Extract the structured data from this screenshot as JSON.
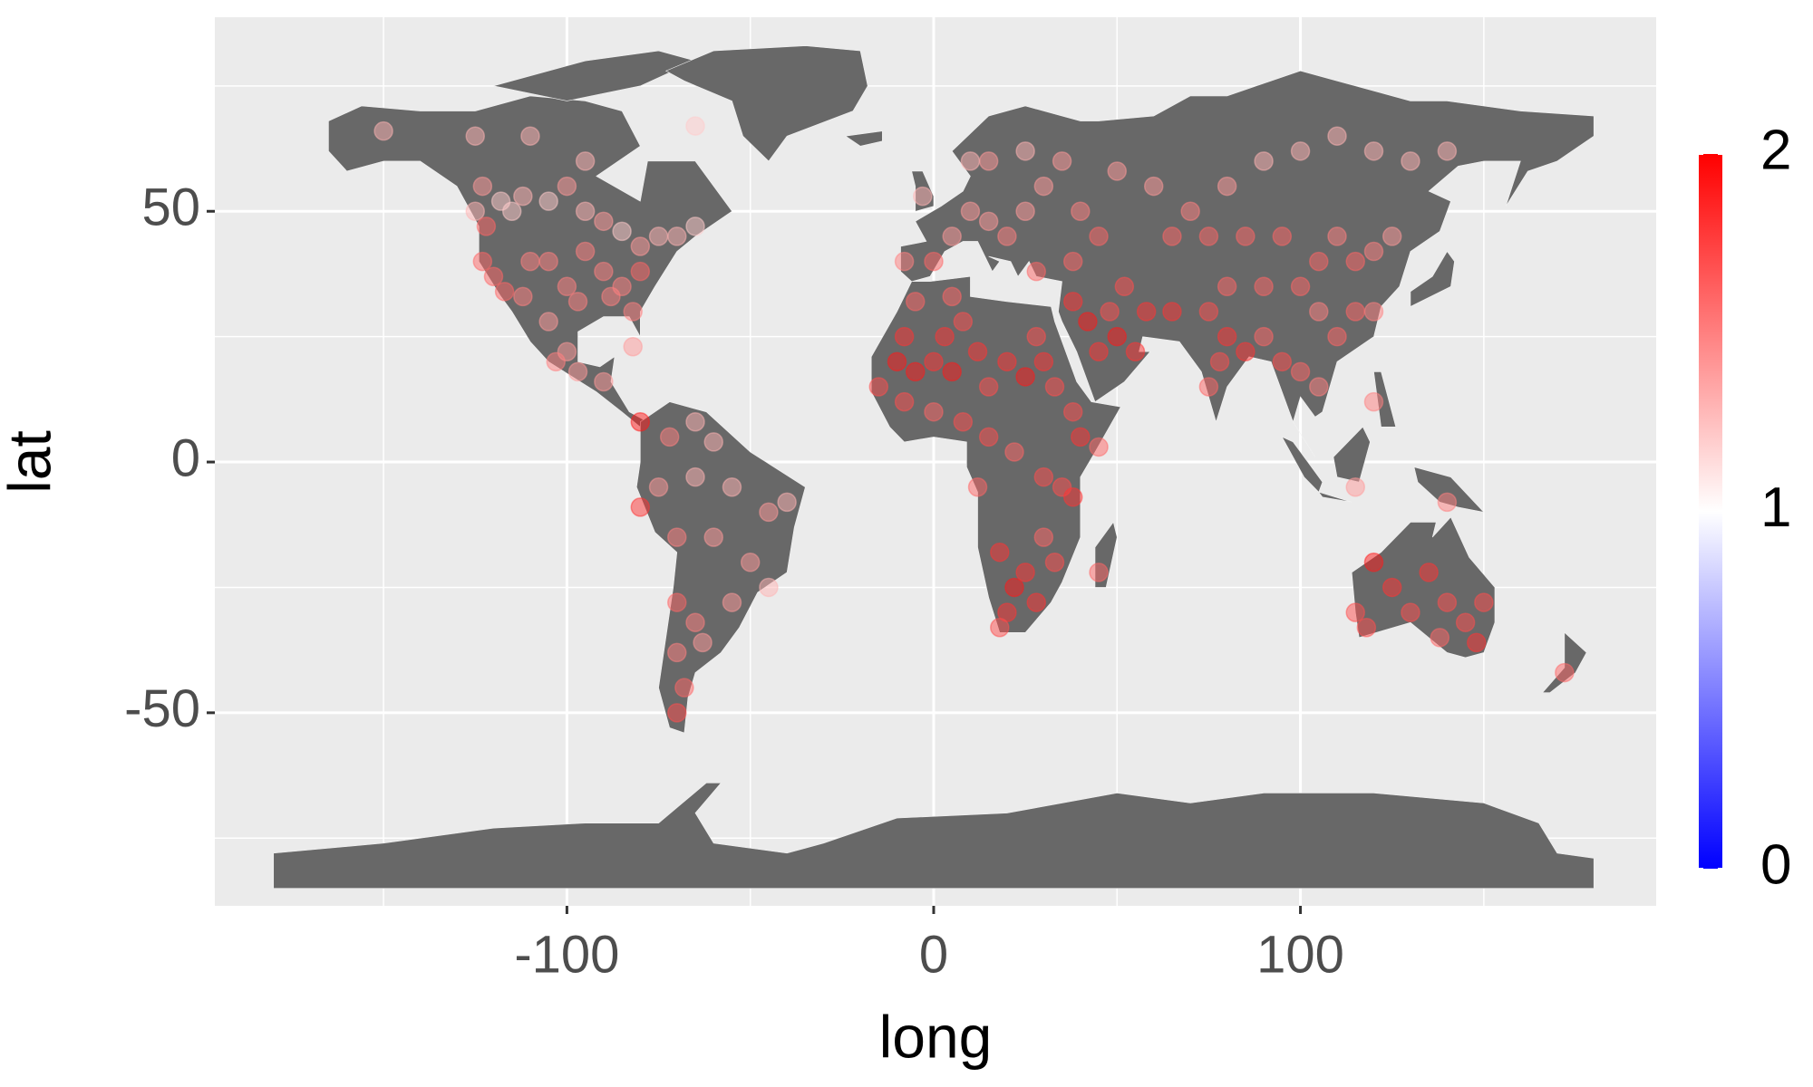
{
  "chart_data": {
    "type": "scatter",
    "x_label": "long",
    "y_label": "lat",
    "xlim": [
      -196,
      197
    ],
    "ylim": [
      -88.5,
      88.7
    ],
    "xticks": [
      -100,
      0,
      100
    ],
    "yticks": [
      -50,
      0,
      50
    ],
    "grid": true,
    "point_alpha": 0.5,
    "colorscale": {
      "low": "#0000ff",
      "mid": "#ffffff",
      "high": "#ff0000",
      "limits": [
        0,
        2
      ],
      "ticks": [
        0,
        1,
        2
      ]
    },
    "x": [
      -150,
      -125,
      -123,
      -125,
      -122,
      -118,
      -115,
      -112,
      -105,
      -100,
      -95,
      -90,
      -85,
      -80,
      -75,
      -70,
      -65,
      -123,
      -120,
      -117,
      -112,
      -110,
      -105,
      -100,
      -97,
      -95,
      -90,
      -85,
      -82,
      -80,
      -88,
      -105,
      -100,
      -103,
      -97,
      -90,
      -82,
      -80,
      -65,
      -110,
      -95,
      -72,
      -65,
      -60,
      -75,
      -65,
      -55,
      -45,
      -40,
      -80,
      -70,
      -60,
      -50,
      -45,
      -55,
      -70,
      -65,
      -70,
      -63,
      -68,
      -70,
      -15,
      -10,
      -8,
      -5,
      0,
      5,
      3,
      8,
      12,
      15,
      20,
      25,
      28,
      30,
      33,
      38,
      40,
      45,
      -5,
      5,
      -8,
      0,
      8,
      15,
      22,
      30,
      35,
      38,
      12,
      18,
      22,
      25,
      28,
      20,
      18,
      30,
      45,
      33,
      38,
      42,
      45,
      50,
      55,
      48,
      52,
      58,
      65,
      -8,
      0,
      5,
      10,
      15,
      20,
      25,
      30,
      35,
      25,
      15,
      -3,
      10,
      40,
      45,
      38,
      28,
      50,
      60,
      70,
      75,
      65,
      80,
      90,
      100,
      110,
      120,
      130,
      140,
      85,
      95,
      105,
      110,
      115,
      120,
      125,
      100,
      90,
      80,
      75,
      80,
      78,
      75,
      85,
      90,
      95,
      100,
      105,
      110,
      115,
      120,
      105,
      115,
      140,
      120,
      115,
      120,
      125,
      130,
      135,
      140,
      145,
      148,
      150,
      138,
      118,
      172
    ],
    "y": [
      66,
      65,
      55,
      50,
      47,
      52,
      50,
      53,
      52,
      55,
      50,
      48,
      46,
      43,
      45,
      45,
      47,
      40,
      37,
      34,
      33,
      40,
      40,
      35,
      32,
      42,
      38,
      35,
      30,
      38,
      33,
      28,
      22,
      20,
      18,
      16,
      23,
      8,
      67,
      65,
      60,
      5,
      8,
      4,
      -5,
      -3,
      -5,
      -10,
      -8,
      -9,
      -15,
      -15,
      -20,
      -25,
      -28,
      -28,
      -32,
      -38,
      -36,
      -45,
      -50,
      15,
      20,
      25,
      18,
      20,
      18,
      25,
      28,
      22,
      15,
      20,
      17,
      25,
      20,
      15,
      10,
      5,
      3,
      32,
      33,
      12,
      10,
      8,
      5,
      2,
      -3,
      -5,
      -7,
      -5,
      -18,
      -25,
      -22,
      -28,
      -30,
      -33,
      -15,
      -22,
      -20,
      32,
      28,
      22,
      25,
      22,
      30,
      35,
      30,
      30,
      40,
      40,
      45,
      50,
      48,
      45,
      50,
      55,
      60,
      62,
      60,
      53,
      60,
      50,
      45,
      40,
      38,
      58,
      55,
      50,
      45,
      45,
      55,
      60,
      62,
      65,
      62,
      60,
      62,
      45,
      45,
      40,
      45,
      40,
      42,
      45,
      35,
      35,
      35,
      30,
      25,
      20,
      15,
      22,
      25,
      20,
      18,
      15,
      25,
      30,
      30,
      30,
      -5,
      -8,
      12,
      -30,
      -20,
      -25,
      -30,
      -22,
      -28,
      -32,
      -36,
      -28,
      -35,
      -33,
      -42
    ],
    "values": [
      1.3,
      1.3,
      1.4,
      1.3,
      1.6,
      1.2,
      1.2,
      1.3,
      1.2,
      1.4,
      1.3,
      1.4,
      1.2,
      1.4,
      1.3,
      1.3,
      1.2,
      1.6,
      1.6,
      1.6,
      1.5,
      1.5,
      1.5,
      1.5,
      1.5,
      1.5,
      1.5,
      1.5,
      1.5,
      1.6,
      1.5,
      1.4,
      1.4,
      1.5,
      1.4,
      1.4,
      1.4,
      1.9,
      1.2,
      1.3,
      1.3,
      1.5,
      1.3,
      1.3,
      1.4,
      1.3,
      1.3,
      1.4,
      1.3,
      1.8,
      1.5,
      1.4,
      1.4,
      1.3,
      1.4,
      1.6,
      1.5,
      1.5,
      1.4,
      1.6,
      1.7,
      1.7,
      1.9,
      1.8,
      1.9,
      1.8,
      1.9,
      1.8,
      1.7,
      1.8,
      1.7,
      1.8,
      1.9,
      1.7,
      1.8,
      1.7,
      1.7,
      1.8,
      1.6,
      1.6,
      1.6,
      1.7,
      1.6,
      1.7,
      1.7,
      1.6,
      1.7,
      1.7,
      1.8,
      1.6,
      1.8,
      1.9,
      1.8,
      1.8,
      1.8,
      1.7,
      1.6,
      1.6,
      1.7,
      1.8,
      1.9,
      1.8,
      1.9,
      1.8,
      1.7,
      1.7,
      1.8,
      1.8,
      1.5,
      1.6,
      1.4,
      1.4,
      1.4,
      1.5,
      1.4,
      1.4,
      1.4,
      1.3,
      1.4,
      1.3,
      1.3,
      1.5,
      1.6,
      1.6,
      1.6,
      1.4,
      1.4,
      1.5,
      1.6,
      1.6,
      1.4,
      1.3,
      1.3,
      1.3,
      1.3,
      1.3,
      1.3,
      1.6,
      1.6,
      1.6,
      1.5,
      1.6,
      1.5,
      1.4,
      1.6,
      1.6,
      1.6,
      1.7,
      1.8,
      1.7,
      1.6,
      1.8,
      1.6,
      1.7,
      1.6,
      1.5,
      1.6,
      1.6,
      1.5,
      1.5,
      1.4,
      1.5,
      1.5,
      1.7,
      1.9,
      1.8,
      1.7,
      1.8,
      1.7,
      1.7,
      1.8,
      1.7,
      1.6,
      1.7,
      1.6
    ]
  }
}
